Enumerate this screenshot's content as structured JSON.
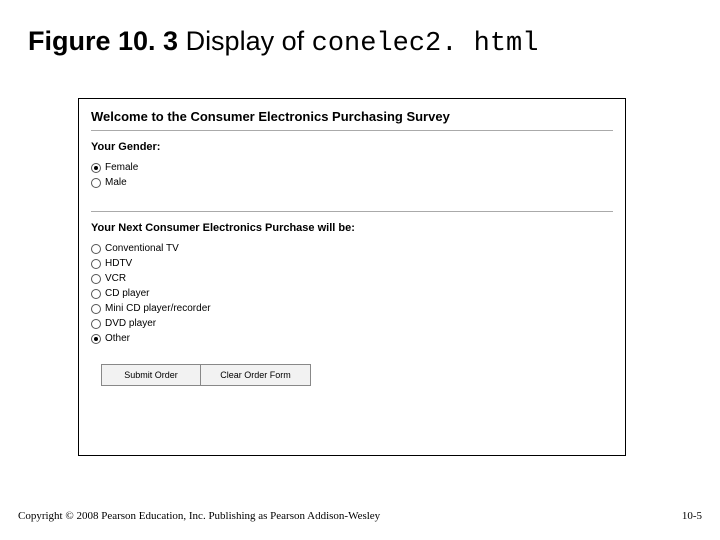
{
  "title": {
    "figure_label": "Figure 10. 3",
    "middle_text": " Display of ",
    "code_text": "conelec2. html"
  },
  "form": {
    "heading": "Welcome to the Consumer Electronics Purchasing Survey",
    "gender": {
      "label": "Your Gender:",
      "options": [
        {
          "label": "Female",
          "checked": true
        },
        {
          "label": "Male",
          "checked": false
        }
      ]
    },
    "purchase": {
      "label": "Your Next Consumer Electronics Purchase will be:",
      "options": [
        {
          "label": "Conventional TV",
          "checked": false
        },
        {
          "label": "HDTV",
          "checked": false
        },
        {
          "label": "VCR",
          "checked": false
        },
        {
          "label": "CD player",
          "checked": false
        },
        {
          "label": "Mini CD player/recorder",
          "checked": false
        },
        {
          "label": "DVD player",
          "checked": false
        },
        {
          "label": "Other",
          "checked": true
        }
      ]
    },
    "buttons": {
      "submit": "Submit Order",
      "clear": "Clear Order Form"
    }
  },
  "footer": {
    "copyright": "Copyright © 2008 Pearson Education, Inc. Publishing as Pearson Addison-Wesley",
    "page": "10-5"
  }
}
